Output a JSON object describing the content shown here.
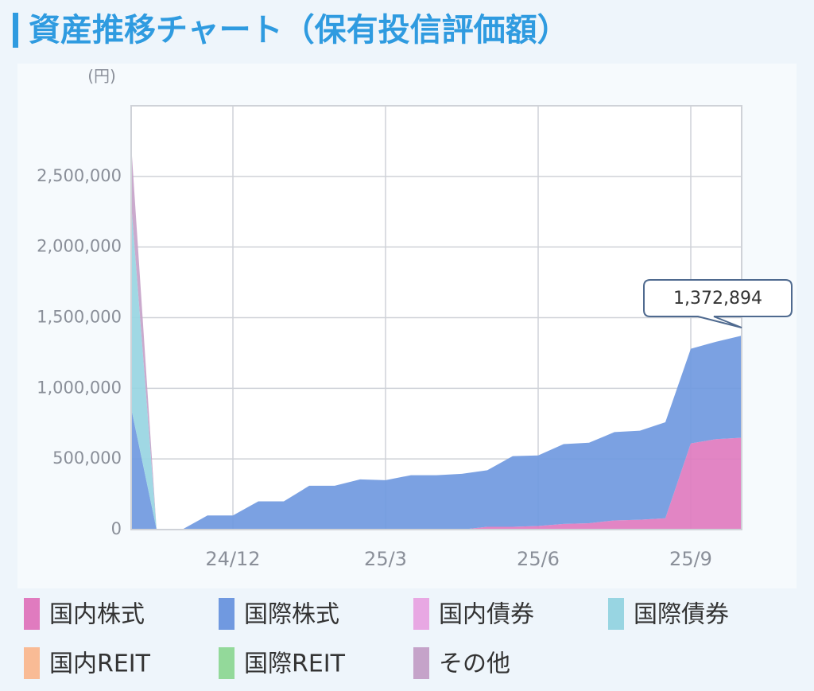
{
  "chart_data": {
    "type": "stacked_area",
    "title": "資産推移チャート（保有投信評価額）",
    "y_label": "(円)",
    "categories": [
      null,
      null,
      null,
      null,
      "24/12",
      null,
      null,
      null,
      null,
      null,
      "25/3",
      null,
      null,
      null,
      null,
      null,
      "25/6",
      null,
      null,
      null,
      null,
      null,
      "25/9",
      null,
      null
    ],
    "series": [
      {
        "name": "国内株式",
        "color": "#e07bbf",
        "values": [
          0,
          0,
          0,
          0,
          0,
          0,
          0,
          0,
          0,
          0,
          0,
          0,
          0,
          0,
          20000,
          20000,
          25000,
          40000,
          45000,
          65000,
          70000,
          80000,
          610000,
          640000,
          650000
        ]
      },
      {
        "name": "国際株式",
        "color": "#7099e0",
        "values": [
          860000,
          0,
          0,
          100000,
          100000,
          200000,
          200000,
          310000,
          310000,
          355000,
          350000,
          385000,
          385000,
          395000,
          400000,
          500000,
          500000,
          565000,
          570000,
          625000,
          630000,
          680000,
          670000,
          690000,
          722894
        ]
      },
      {
        "name": "国内債券",
        "color": "#e8a8e3",
        "values": [
          0,
          0,
          0,
          0,
          0,
          0,
          0,
          0,
          0,
          0,
          0,
          0,
          0,
          0,
          0,
          0,
          0,
          0,
          0,
          0,
          0,
          0,
          0,
          0,
          0
        ]
      },
      {
        "name": "国際債券",
        "color": "#98d5e2",
        "values": [
          1450000,
          0,
          0,
          0,
          0,
          0,
          0,
          0,
          0,
          0,
          0,
          0,
          0,
          0,
          0,
          0,
          0,
          0,
          0,
          0,
          0,
          0,
          0,
          0,
          0
        ]
      },
      {
        "name": "国内REIT",
        "color": "#f9bb95",
        "values": [
          0,
          0,
          0,
          0,
          0,
          0,
          0,
          0,
          0,
          0,
          0,
          0,
          0,
          0,
          0,
          0,
          0,
          0,
          0,
          0,
          0,
          0,
          0,
          0,
          0
        ]
      },
      {
        "name": "国際REIT",
        "color": "#93d99a",
        "values": [
          0,
          0,
          0,
          0,
          0,
          0,
          0,
          0,
          0,
          0,
          0,
          0,
          0,
          0,
          0,
          0,
          0,
          0,
          0,
          0,
          0,
          0,
          0,
          0,
          0
        ]
      },
      {
        "name": "その他",
        "color": "#c5a3c9",
        "values": [
          420000,
          0,
          0,
          0,
          0,
          0,
          0,
          0,
          0,
          0,
          0,
          0,
          0,
          0,
          0,
          0,
          0,
          0,
          0,
          0,
          0,
          0,
          0,
          0,
          0
        ]
      }
    ],
    "ylim": [
      0,
      3000000
    ],
    "yticks": [
      0,
      {
        "value": 500000,
        "label": "500,000"
      },
      {
        "value": 1000000,
        "label": "1,000,000"
      },
      {
        "value": 1500000,
        "label": "1,500,000"
      },
      {
        "value": 2000000,
        "label": "2,000,000"
      },
      {
        "value": 2500000,
        "label": "2,500,000"
      }
    ],
    "grid": true,
    "annotation": "1,372,894"
  }
}
